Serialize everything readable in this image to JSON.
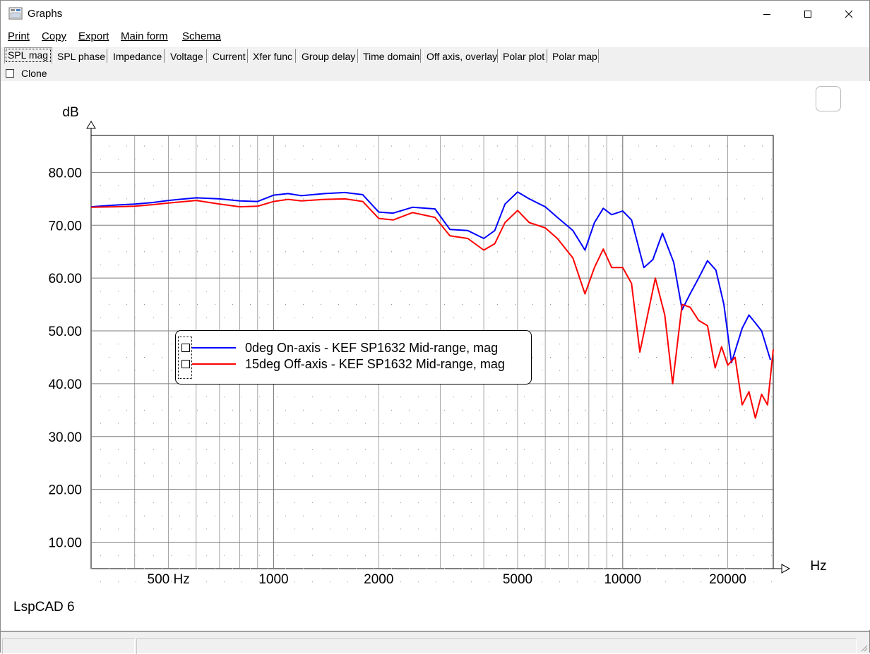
{
  "window": {
    "title": "Graphs"
  },
  "menu": [
    {
      "label": "Print",
      "accel_index": 0
    },
    {
      "label": "Copy",
      "accel_index": 0
    },
    {
      "label": "Export",
      "accel_index": 0
    },
    {
      "label": "Main form",
      "accel_index": 0
    },
    {
      "label": "Schema",
      "accel_index": 0
    }
  ],
  "tabs": [
    {
      "label": "SPL mag",
      "active": true
    },
    {
      "label": "SPL phase"
    },
    {
      "label": "Impedance"
    },
    {
      "label": "Voltage"
    },
    {
      "label": "Current"
    },
    {
      "label": "Xfer func"
    },
    {
      "label": "Group delay"
    },
    {
      "label": "Time domain"
    },
    {
      "label": "Off axis, overlay"
    },
    {
      "label": "Polar plot"
    },
    {
      "label": "Polar map"
    }
  ],
  "clone": {
    "label": "Clone",
    "checked": false
  },
  "watermark": "LspCAD 6",
  "colors": {
    "series_0": "#0000ff",
    "series_1": "#ff0000",
    "grid": "#7f7f7f"
  },
  "chart_data": {
    "type": "line",
    "title": "",
    "xlabel": "Hz",
    "ylabel": "dB",
    "x_scale": "log",
    "xlim": [
      300,
      27000
    ],
    "ylim": [
      5,
      87
    ],
    "x_ticks": [
      {
        "value": 500,
        "label": "500 Hz"
      },
      {
        "value": 1000,
        "label": "1000"
      },
      {
        "value": 2000,
        "label": "2000"
      },
      {
        "value": 5000,
        "label": "5000"
      },
      {
        "value": 10000,
        "label": "10000"
      },
      {
        "value": 20000,
        "label": "20000"
      }
    ],
    "y_ticks": [
      {
        "value": 80,
        "label": "80.00"
      },
      {
        "value": 70,
        "label": "70.00"
      },
      {
        "value": 60,
        "label": "60.00"
      },
      {
        "value": 50,
        "label": "50.00"
      },
      {
        "value": 40,
        "label": "40.00"
      },
      {
        "value": 30,
        "label": "30.00"
      },
      {
        "value": 20,
        "label": "20.00"
      },
      {
        "value": 10,
        "label": "10.00"
      }
    ],
    "grid": true,
    "legend": "center-left",
    "series": [
      {
        "name": "0deg On-axis - KEF SP1632 Mid-range, mag",
        "color": "#0000ff",
        "visible": true,
        "points": [
          [
            300,
            73.5
          ],
          [
            350,
            73.8
          ],
          [
            400,
            74.0
          ],
          [
            450,
            74.3
          ],
          [
            500,
            74.7
          ],
          [
            600,
            75.2
          ],
          [
            700,
            75.0
          ],
          [
            800,
            74.6
          ],
          [
            900,
            74.5
          ],
          [
            1000,
            75.7
          ],
          [
            1100,
            76.0
          ],
          [
            1200,
            75.6
          ],
          [
            1400,
            76.0
          ],
          [
            1600,
            76.2
          ],
          [
            1800,
            75.8
          ],
          [
            2000,
            72.5
          ],
          [
            2200,
            72.3
          ],
          [
            2500,
            73.4
          ],
          [
            2900,
            73.1
          ],
          [
            3200,
            69.2
          ],
          [
            3600,
            69.0
          ],
          [
            4000,
            67.5
          ],
          [
            4300,
            69.0
          ],
          [
            4600,
            74.0
          ],
          [
            5000,
            76.3
          ],
          [
            5400,
            75.0
          ],
          [
            6000,
            73.5
          ],
          [
            6500,
            71.5
          ],
          [
            7200,
            69.0
          ],
          [
            7800,
            65.3
          ],
          [
            8300,
            70.5
          ],
          [
            8800,
            73.2
          ],
          [
            9300,
            72.0
          ],
          [
            10000,
            72.7
          ],
          [
            10600,
            71.0
          ],
          [
            11500,
            62.0
          ],
          [
            12200,
            63.5
          ],
          [
            13000,
            68.5
          ],
          [
            14000,
            63.0
          ],
          [
            14800,
            54.0
          ],
          [
            15600,
            57.0
          ],
          [
            16500,
            60.0
          ],
          [
            17500,
            63.3
          ],
          [
            18500,
            61.5
          ],
          [
            19500,
            55.0
          ],
          [
            20500,
            44.0
          ],
          [
            22000,
            50.5
          ],
          [
            23000,
            53.0
          ],
          [
            24000,
            51.5
          ],
          [
            25000,
            50.0
          ],
          [
            26500,
            44.5
          ]
        ]
      },
      {
        "name": "15deg Off-axis - KEF SP1632 Mid-range, mag",
        "color": "#ff0000",
        "visible": true,
        "points": [
          [
            300,
            73.4
          ],
          [
            350,
            73.5
          ],
          [
            400,
            73.6
          ],
          [
            450,
            73.9
          ],
          [
            500,
            74.2
          ],
          [
            600,
            74.7
          ],
          [
            700,
            74.0
          ],
          [
            800,
            73.5
          ],
          [
            900,
            73.6
          ],
          [
            1000,
            74.5
          ],
          [
            1100,
            74.9
          ],
          [
            1200,
            74.6
          ],
          [
            1400,
            74.9
          ],
          [
            1600,
            75.0
          ],
          [
            1800,
            74.5
          ],
          [
            2000,
            71.3
          ],
          [
            2200,
            71.0
          ],
          [
            2500,
            72.4
          ],
          [
            2900,
            71.5
          ],
          [
            3200,
            68.0
          ],
          [
            3600,
            67.5
          ],
          [
            4000,
            65.3
          ],
          [
            4300,
            66.5
          ],
          [
            4600,
            70.5
          ],
          [
            5000,
            72.8
          ],
          [
            5400,
            70.5
          ],
          [
            6000,
            69.5
          ],
          [
            6500,
            67.5
          ],
          [
            7200,
            63.8
          ],
          [
            7800,
            57.0
          ],
          [
            8300,
            62.0
          ],
          [
            8800,
            65.5
          ],
          [
            9300,
            62.0
          ],
          [
            10000,
            62.0
          ],
          [
            10600,
            59.0
          ],
          [
            11200,
            46.0
          ],
          [
            11700,
            52.0
          ],
          [
            12400,
            60.0
          ],
          [
            13200,
            53.0
          ],
          [
            13900,
            40.0
          ],
          [
            14800,
            55.0
          ],
          [
            15600,
            54.5
          ],
          [
            16500,
            52.0
          ],
          [
            17500,
            51.0
          ],
          [
            18400,
            43.0
          ],
          [
            19200,
            47.0
          ],
          [
            20000,
            43.5
          ],
          [
            21000,
            45.0
          ],
          [
            22000,
            36.0
          ],
          [
            23000,
            38.5
          ],
          [
            24000,
            33.5
          ],
          [
            25000,
            38.0
          ],
          [
            26000,
            36.0
          ],
          [
            27000,
            46.5
          ]
        ]
      }
    ]
  }
}
